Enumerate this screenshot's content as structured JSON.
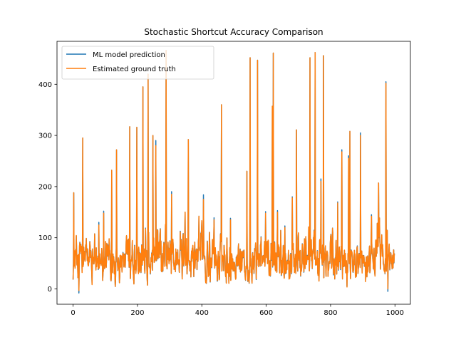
{
  "chart_data": {
    "type": "line",
    "title": "Stochastic Shortcut Accuracy Comparison",
    "xlabel": "",
    "ylabel": "",
    "xlim": [
      -50,
      1048
    ],
    "ylim": [
      -30,
      484
    ],
    "xticks": [
      0,
      200,
      400,
      600,
      800,
      1000
    ],
    "yticks": [
      0,
      100,
      200,
      300,
      400
    ],
    "grid": false,
    "legend_position": "upper-left",
    "n_points": 1000,
    "series": [
      {
        "name": "ML model prediction",
        "color": "#1f77b4",
        "peaks": [
          [
            2,
            188
          ],
          [
            18,
            -8
          ],
          [
            30,
            295
          ],
          [
            60,
            78
          ],
          [
            80,
            130
          ],
          [
            95,
            152
          ],
          [
            120,
            232
          ],
          [
            135,
            272
          ],
          [
            176,
            317
          ],
          [
            198,
            316
          ],
          [
            217,
            395
          ],
          [
            233,
            420
          ],
          [
            248,
            300
          ],
          [
            257,
            290
          ],
          [
            289,
            466
          ],
          [
            306,
            190
          ],
          [
            348,
            150
          ],
          [
            358,
            292
          ],
          [
            391,
            142
          ],
          [
            405,
            184
          ],
          [
            438,
            139
          ],
          [
            461,
            360
          ],
          [
            489,
            138
          ],
          [
            540,
            230
          ],
          [
            550,
            452
          ],
          [
            573,
            447
          ],
          [
            598,
            151
          ],
          [
            619,
            357
          ],
          [
            622,
            461
          ],
          [
            635,
            153
          ],
          [
            658,
            123
          ],
          [
            681,
            180
          ],
          [
            694,
            311
          ],
          [
            736,
            452
          ],
          [
            752,
            462
          ],
          [
            770,
            215
          ],
          [
            778,
            456
          ],
          [
            822,
            170
          ],
          [
            835,
            272
          ],
          [
            856,
            260
          ],
          [
            860,
            308
          ],
          [
            893,
            305
          ],
          [
            927,
            145
          ],
          [
            949,
            207
          ],
          [
            972,
            405
          ],
          [
            978,
            -5
          ],
          [
            993,
            66
          ]
        ],
        "base_min": 0,
        "base_max": 110
      },
      {
        "name": "Estimated ground truth",
        "color": "#ff7f0e",
        "peaks": [
          [
            2,
            188
          ],
          [
            18,
            -3
          ],
          [
            30,
            295
          ],
          [
            60,
            78
          ],
          [
            80,
            125
          ],
          [
            95,
            148
          ],
          [
            120,
            232
          ],
          [
            135,
            272
          ],
          [
            176,
            317
          ],
          [
            198,
            316
          ],
          [
            217,
            395
          ],
          [
            233,
            420
          ],
          [
            248,
            300
          ],
          [
            257,
            280
          ],
          [
            289,
            466
          ],
          [
            306,
            185
          ],
          [
            348,
            150
          ],
          [
            358,
            292
          ],
          [
            391,
            142
          ],
          [
            405,
            175
          ],
          [
            438,
            135
          ],
          [
            461,
            360
          ],
          [
            489,
            135
          ],
          [
            540,
            230
          ],
          [
            550,
            452
          ],
          [
            573,
            447
          ],
          [
            598,
            148
          ],
          [
            619,
            357
          ],
          [
            622,
            461
          ],
          [
            635,
            150
          ],
          [
            658,
            120
          ],
          [
            681,
            178
          ],
          [
            694,
            311
          ],
          [
            736,
            452
          ],
          [
            752,
            462
          ],
          [
            770,
            210
          ],
          [
            778,
            456
          ],
          [
            822,
            168
          ],
          [
            835,
            268
          ],
          [
            856,
            255
          ],
          [
            860,
            308
          ],
          [
            893,
            300
          ],
          [
            927,
            142
          ],
          [
            949,
            207
          ],
          [
            972,
            402
          ],
          [
            978,
            0
          ],
          [
            993,
            66
          ]
        ],
        "base_min": 0,
        "base_max": 110
      }
    ]
  }
}
